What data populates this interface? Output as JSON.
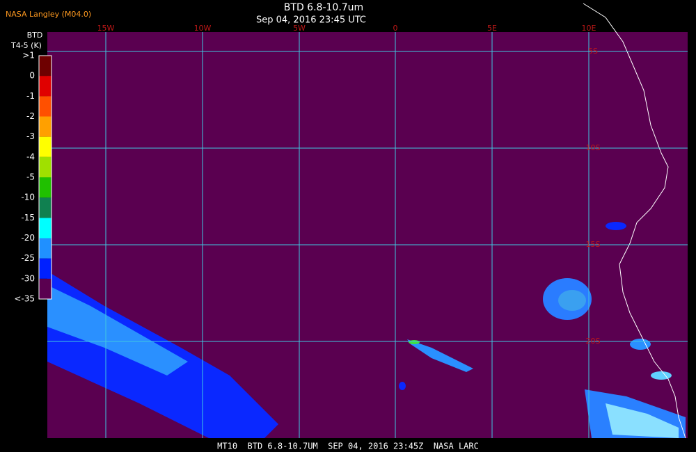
{
  "header": {
    "source": "NASA Langley (M04.0)",
    "title": "BTD 6.8-10.7um",
    "timestamp": "Sep 04, 2016 23:45 UTC"
  },
  "legend": {
    "title": "BTD",
    "unit": "T4-5 (K)",
    "labels": [
      ">1",
      "0",
      "-1",
      "-2",
      "-3",
      "-4",
      "-5",
      "-10",
      "-15",
      "-20",
      "-25",
      "-30",
      "<-35"
    ],
    "colors": [
      "#6e0000",
      "#e00000",
      "#ff5000",
      "#ffa000",
      "#ffff00",
      "#a0e000",
      "#20c000",
      "#108050",
      "#00ffff",
      "#2090ff",
      "#0020ff",
      "#5a0050"
    ]
  },
  "grid": {
    "lon_labels": [
      "15W",
      "10W",
      "5W",
      "0",
      "5E",
      "10E"
    ],
    "lat_labels": [
      "5S",
      "10S",
      "15S",
      "20S"
    ]
  },
  "footer": {
    "text": "MT10  BTD 6.8-10.7UM  SEP 04, 2016 23:45Z  NASA LARC"
  }
}
